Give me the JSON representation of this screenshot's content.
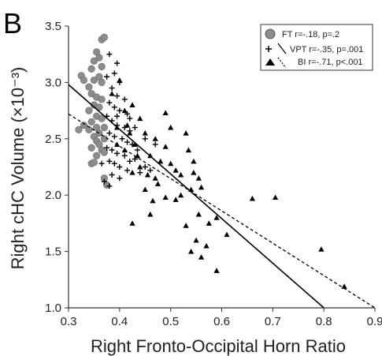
{
  "panel_label": "B",
  "chart_data": {
    "type": "scatter",
    "xlabel": "Right Fronto-Occipital Horn Ratio",
    "ylabel": "Right cHC Volume (×10⁻³)",
    "xlim": [
      0.3,
      0.9
    ],
    "ylim": [
      1.0,
      3.5
    ],
    "x_ticks": [
      "0.3",
      "0.4",
      "0.5",
      "0.6",
      "0.7",
      "0.8",
      "0.9"
    ],
    "y_ticks": [
      "1.0",
      "1.5",
      "2.0",
      "2.5",
      "3.0",
      "3.5"
    ],
    "grid": false,
    "legend_position": "top-right",
    "series": [
      {
        "name": "FT r=-.18, p=.2",
        "marker": "circle",
        "color": "#8c8c8c",
        "points": [
          [
            0.365,
            3.38
          ],
          [
            0.37,
            3.4
          ],
          [
            0.355,
            3.27
          ],
          [
            0.36,
            3.22
          ],
          [
            0.35,
            3.19
          ],
          [
            0.365,
            3.14
          ],
          [
            0.345,
            3.12
          ],
          [
            0.36,
            3.05
          ],
          [
            0.325,
            3.06
          ],
          [
            0.33,
            3.02
          ],
          [
            0.35,
            3.02
          ],
          [
            0.365,
            3.0
          ],
          [
            0.34,
            2.96
          ],
          [
            0.345,
            2.9
          ],
          [
            0.355,
            2.87
          ],
          [
            0.365,
            2.85
          ],
          [
            0.35,
            2.8
          ],
          [
            0.36,
            2.78
          ],
          [
            0.34,
            2.75
          ],
          [
            0.355,
            2.7
          ],
          [
            0.365,
            2.68
          ],
          [
            0.345,
            2.65
          ],
          [
            0.355,
            2.6
          ],
          [
            0.37,
            2.6
          ],
          [
            0.34,
            2.58
          ],
          [
            0.36,
            2.55
          ],
          [
            0.35,
            2.52
          ],
          [
            0.355,
            2.48
          ],
          [
            0.36,
            2.45
          ],
          [
            0.345,
            2.42
          ],
          [
            0.365,
            2.4
          ],
          [
            0.37,
            2.38
          ],
          [
            0.355,
            2.35
          ],
          [
            0.32,
            2.58
          ],
          [
            0.33,
            2.62
          ],
          [
            0.345,
            2.28
          ],
          [
            0.37,
            2.15
          ],
          [
            0.375,
            2.09
          ],
          [
            0.35,
            2.29
          ],
          [
            0.37,
            2.5
          ]
        ]
      },
      {
        "name": "VPT r=-.35, p=.001",
        "marker": "plus",
        "color": "#000000",
        "points": [
          [
            0.38,
            3.25
          ],
          [
            0.395,
            3.17
          ],
          [
            0.39,
            3.08
          ],
          [
            0.375,
            3.05
          ],
          [
            0.4,
            3.0
          ],
          [
            0.385,
            2.95
          ],
          [
            0.395,
            2.88
          ],
          [
            0.41,
            2.85
          ],
          [
            0.38,
            2.82
          ],
          [
            0.39,
            2.78
          ],
          [
            0.4,
            2.75
          ],
          [
            0.415,
            2.72
          ],
          [
            0.375,
            2.7
          ],
          [
            0.385,
            2.66
          ],
          [
            0.395,
            2.62
          ],
          [
            0.41,
            2.6
          ],
          [
            0.42,
            2.57
          ],
          [
            0.38,
            2.55
          ],
          [
            0.39,
            2.52
          ],
          [
            0.405,
            2.5
          ],
          [
            0.415,
            2.47
          ],
          [
            0.425,
            2.45
          ],
          [
            0.375,
            2.42
          ],
          [
            0.385,
            2.4
          ],
          [
            0.395,
            2.37
          ],
          [
            0.41,
            2.35
          ],
          [
            0.43,
            2.32
          ],
          [
            0.38,
            2.3
          ],
          [
            0.39,
            2.28
          ],
          [
            0.4,
            2.25
          ],
          [
            0.415,
            2.22
          ],
          [
            0.44,
            2.2
          ],
          [
            0.45,
            2.25
          ],
          [
            0.46,
            2.22
          ],
          [
            0.385,
            2.18
          ],
          [
            0.4,
            2.15
          ],
          [
            0.42,
            2.3
          ],
          [
            0.435,
            2.4
          ],
          [
            0.37,
            2.12
          ],
          [
            0.38,
            2.08
          ],
          [
            0.43,
            2.6
          ],
          [
            0.45,
            2.5
          ],
          [
            0.47,
            2.45
          ],
          [
            0.365,
            2.28
          ],
          [
            0.395,
            2.7
          ],
          [
            0.42,
            2.68
          ]
        ]
      },
      {
        "name": "BI r=-.71, p<.001",
        "marker": "triangle",
        "color": "#000000",
        "points": [
          [
            0.4,
            3.02
          ],
          [
            0.385,
            2.9
          ],
          [
            0.41,
            2.75
          ],
          [
            0.425,
            2.8
          ],
          [
            0.44,
            2.68
          ],
          [
            0.395,
            2.6
          ],
          [
            0.42,
            2.55
          ],
          [
            0.45,
            2.55
          ],
          [
            0.43,
            2.45
          ],
          [
            0.47,
            2.5
          ],
          [
            0.41,
            2.4
          ],
          [
            0.435,
            2.35
          ],
          [
            0.46,
            2.35
          ],
          [
            0.49,
            2.43
          ],
          [
            0.48,
            2.3
          ],
          [
            0.44,
            2.25
          ],
          [
            0.455,
            2.18
          ],
          [
            0.425,
            2.2
          ],
          [
            0.5,
            2.28
          ],
          [
            0.51,
            2.22
          ],
          [
            0.52,
            2.18
          ],
          [
            0.5,
            2.6
          ],
          [
            0.49,
            2.73
          ],
          [
            0.53,
            2.55
          ],
          [
            0.535,
            2.4
          ],
          [
            0.545,
            2.3
          ],
          [
            0.555,
            2.15
          ],
          [
            0.54,
            2.05
          ],
          [
            0.56,
            2.07
          ],
          [
            0.45,
            2.05
          ],
          [
            0.475,
            2.1
          ],
          [
            0.465,
            1.95
          ],
          [
            0.49,
            1.98
          ],
          [
            0.51,
            1.96
          ],
          [
            0.53,
            1.73
          ],
          [
            0.55,
            1.6
          ],
          [
            0.56,
            1.45
          ],
          [
            0.54,
            1.5
          ],
          [
            0.555,
            1.83
          ],
          [
            0.57,
            1.55
          ],
          [
            0.59,
            1.33
          ],
          [
            0.575,
            1.75
          ],
          [
            0.59,
            1.8
          ],
          [
            0.61,
            1.65
          ],
          [
            0.425,
            1.75
          ],
          [
            0.46,
            1.83
          ],
          [
            0.66,
            1.97
          ],
          [
            0.705,
            1.98
          ],
          [
            0.795,
            1.52
          ],
          [
            0.84,
            1.19
          ],
          [
            0.395,
            2.45
          ],
          [
            0.415,
            2.62
          ],
          [
            0.47,
            2.15
          ],
          [
            0.52,
            2.0
          ],
          [
            0.545,
            2.2
          ]
        ]
      }
    ],
    "fit_lines": [
      {
        "series": "VPT r=-.35, p=.001",
        "style": "solid",
        "x": [
          0.3,
          0.8
        ],
        "y": [
          2.98,
          1.0
        ]
      },
      {
        "series": "BI r=-.71, p<.001",
        "style": "dashed",
        "x": [
          0.3,
          0.9
        ],
        "y": [
          2.72,
          1.0
        ]
      }
    ]
  }
}
